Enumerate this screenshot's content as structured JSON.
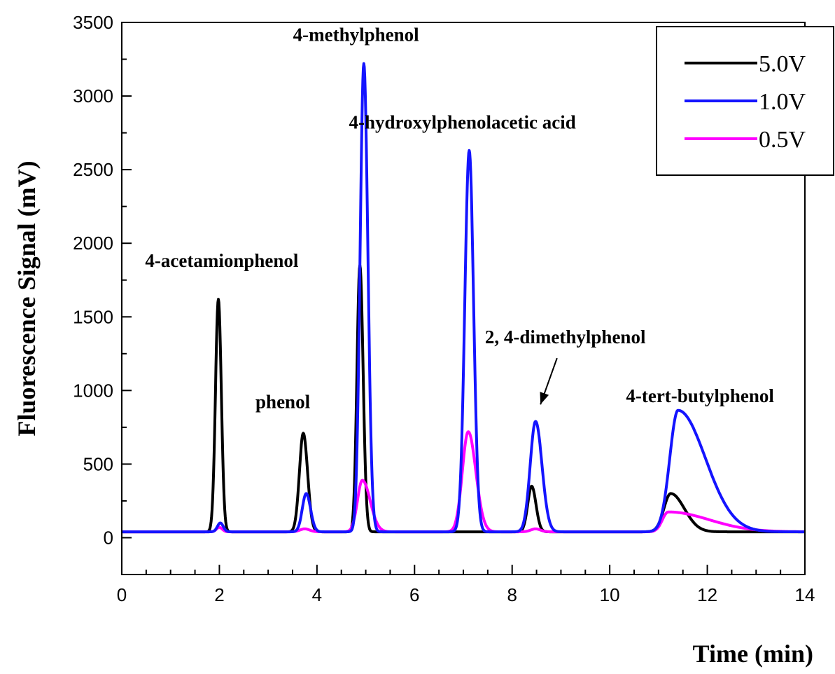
{
  "chart_data": {
    "type": "line",
    "xlabel": "Time (min)",
    "ylabel": "Fluorescence Signal (mV)",
    "xlim": [
      0,
      14
    ],
    "ylim": [
      -250,
      3500
    ],
    "xticks": [
      0,
      2,
      4,
      6,
      8,
      10,
      12,
      14
    ],
    "yticks": [
      0,
      500,
      1000,
      1500,
      2000,
      2500,
      3000,
      3500
    ],
    "grid": false,
    "legend_position": "top-right",
    "baseline": 40,
    "series": [
      {
        "name": "5.0V",
        "color": "#000000",
        "peaks": [
          {
            "t": 1.98,
            "h": 1620,
            "w": 0.06,
            "tail": 1.0
          },
          {
            "t": 3.72,
            "h": 710,
            "w": 0.08,
            "tail": 1.1
          },
          {
            "t": 4.88,
            "h": 1850,
            "w": 0.06,
            "tail": 1.1
          },
          {
            "t": 8.4,
            "h": 350,
            "w": 0.08,
            "tail": 1.1
          },
          {
            "t": 11.25,
            "h": 300,
            "w": 0.14,
            "tail": 2.0
          }
        ]
      },
      {
        "name": "1.0V",
        "color": "#1414ff",
        "peaks": [
          {
            "t": 2.02,
            "h": 100,
            "w": 0.06,
            "tail": 1.0
          },
          {
            "t": 3.78,
            "h": 300,
            "w": 0.08,
            "tail": 1.1
          },
          {
            "t": 4.96,
            "h": 3220,
            "w": 0.075,
            "tail": 1.1
          },
          {
            "t": 7.12,
            "h": 2630,
            "w": 0.09,
            "tail": 1.0
          },
          {
            "t": 8.48,
            "h": 790,
            "w": 0.11,
            "tail": 1.2
          },
          {
            "t": 11.4,
            "h": 865,
            "w": 0.17,
            "tail": 3.3
          }
        ]
      },
      {
        "name": "0.5V",
        "color": "#ff00ff",
        "peaks": [
          {
            "t": 2.0,
            "h": 70,
            "w": 0.06,
            "tail": 1.0
          },
          {
            "t": 3.75,
            "h": 60,
            "w": 0.1,
            "tail": 1.0
          },
          {
            "t": 4.93,
            "h": 390,
            "w": 0.1,
            "tail": 1.6
          },
          {
            "t": 7.1,
            "h": 720,
            "w": 0.12,
            "tail": 1.3
          },
          {
            "t": 8.48,
            "h": 60,
            "w": 0.1,
            "tail": 1.0
          },
          {
            "t": 11.2,
            "h": 175,
            "w": 0.12,
            "tail": 7.0
          }
        ]
      }
    ],
    "annotations": [
      {
        "text": "4-acetamionphenol",
        "x": 2.05,
        "y": 1840
      },
      {
        "text": "phenol",
        "x": 3.3,
        "y": 880
      },
      {
        "text": "4-methylphenol",
        "x": 4.8,
        "y": 3375
      },
      {
        "text": "4-hydroxylphenolacetic acid",
        "x": 6.98,
        "y": 2780
      },
      {
        "text": "2, 4-dimethylphenol",
        "x": 9.09,
        "y": 1320
      },
      {
        "text": "4-tert-butylphenol",
        "x": 11.85,
        "y": 920
      }
    ],
    "arrow": {
      "from": [
        8.92,
        1220
      ],
      "to": [
        8.58,
        905
      ]
    }
  }
}
